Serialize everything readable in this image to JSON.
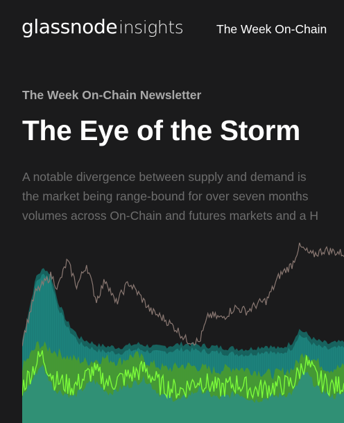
{
  "header": {
    "logo_brand": "glassnode",
    "logo_product": "insights",
    "nav_link": "The Week On-Chain"
  },
  "article": {
    "kicker": "The Week On-Chain Newsletter",
    "title": "The Eye of the Storm",
    "summary_lines": [
      "A notable divergence between supply and demand is",
      "the market being range-bound for over seven months",
      "volumes across On-Chain and futures markets and a H"
    ]
  },
  "colors": {
    "background": "#1b1b1c",
    "price_line": "#8a7872",
    "teal_band": "#1f8a82",
    "dark_teal_band": "#17625e",
    "green_band": "#4a9a2e",
    "bright_green_line": "#7cfc3a"
  },
  "hero_chart": {
    "series": [
      {
        "name": "",
        "color": "#8a7872",
        "profile": [
          [
            0,
            0.45
          ],
          [
            0.04,
            0.72
          ],
          [
            0.09,
            0.82
          ],
          [
            0.11,
            0.75
          ],
          [
            0.14,
            0.9
          ],
          [
            0.17,
            0.76
          ],
          [
            0.2,
            0.88
          ],
          [
            0.23,
            0.68
          ],
          [
            0.26,
            0.8
          ],
          [
            0.29,
            0.66
          ],
          [
            0.33,
            0.78
          ],
          [
            0.36,
            0.72
          ],
          [
            0.4,
            0.62
          ],
          [
            0.44,
            0.58
          ],
          [
            0.48,
            0.52
          ],
          [
            0.51,
            0.46
          ],
          [
            0.55,
            0.45
          ],
          [
            0.58,
            0.6
          ],
          [
            0.62,
            0.58
          ],
          [
            0.66,
            0.64
          ],
          [
            0.7,
            0.62
          ],
          [
            0.73,
            0.66
          ],
          [
            0.76,
            0.68
          ],
          [
            0.8,
            0.82
          ],
          [
            0.84,
            0.88
          ],
          [
            0.86,
            0.98
          ],
          [
            0.9,
            0.93
          ],
          [
            0.94,
            0.96
          ],
          [
            1,
            0.94
          ]
        ]
      },
      {
        "name": "",
        "color": "#1f8a82",
        "profile": [
          [
            0,
            0.46
          ],
          [
            0.02,
            0.62
          ],
          [
            0.045,
            0.82
          ],
          [
            0.07,
            0.86
          ],
          [
            0.09,
            0.82
          ],
          [
            0.11,
            0.68
          ],
          [
            0.14,
            0.56
          ],
          [
            0.18,
            0.47
          ],
          [
            0.24,
            0.43
          ],
          [
            0.3,
            0.42
          ],
          [
            0.36,
            0.44
          ],
          [
            0.42,
            0.42
          ],
          [
            0.5,
            0.44
          ],
          [
            0.56,
            0.43
          ],
          [
            0.62,
            0.42
          ],
          [
            0.7,
            0.41
          ],
          [
            0.76,
            0.43
          ],
          [
            0.8,
            0.41
          ],
          [
            0.84,
            0.45
          ],
          [
            0.86,
            0.52
          ],
          [
            0.88,
            0.5
          ],
          [
            0.91,
            0.46
          ],
          [
            0.95,
            0.44
          ],
          [
            1,
            0.45
          ]
        ]
      },
      {
        "name": "",
        "color": "#4a9a2e",
        "profile": [
          [
            0,
            0.31
          ],
          [
            0.05,
            0.44
          ],
          [
            0.1,
            0.4
          ],
          [
            0.15,
            0.36
          ],
          [
            0.2,
            0.34
          ],
          [
            0.26,
            0.36
          ],
          [
            0.3,
            0.34
          ],
          [
            0.35,
            0.38
          ],
          [
            0.4,
            0.33
          ],
          [
            0.45,
            0.3
          ],
          [
            0.5,
            0.32
          ],
          [
            0.55,
            0.31
          ],
          [
            0.6,
            0.29
          ],
          [
            0.66,
            0.31
          ],
          [
            0.72,
            0.29
          ],
          [
            0.78,
            0.27
          ],
          [
            0.84,
            0.3
          ],
          [
            0.88,
            0.4
          ],
          [
            0.9,
            0.36
          ],
          [
            0.95,
            0.3
          ],
          [
            1,
            0.31
          ]
        ]
      },
      {
        "name": "",
        "color": "#7cfc3a",
        "profile": [
          [
            0,
            0.2
          ],
          [
            0.06,
            0.38
          ],
          [
            0.1,
            0.24
          ],
          [
            0.16,
            0.2
          ],
          [
            0.22,
            0.29
          ],
          [
            0.27,
            0.22
          ],
          [
            0.33,
            0.26
          ],
          [
            0.38,
            0.3
          ],
          [
            0.43,
            0.21
          ],
          [
            0.49,
            0.18
          ],
          [
            0.55,
            0.24
          ],
          [
            0.61,
            0.19
          ],
          [
            0.67,
            0.22
          ],
          [
            0.72,
            0.18
          ],
          [
            0.78,
            0.2
          ],
          [
            0.84,
            0.22
          ],
          [
            0.88,
            0.34
          ],
          [
            0.92,
            0.24
          ],
          [
            0.97,
            0.2
          ],
          [
            1,
            0.22
          ]
        ]
      }
    ]
  }
}
